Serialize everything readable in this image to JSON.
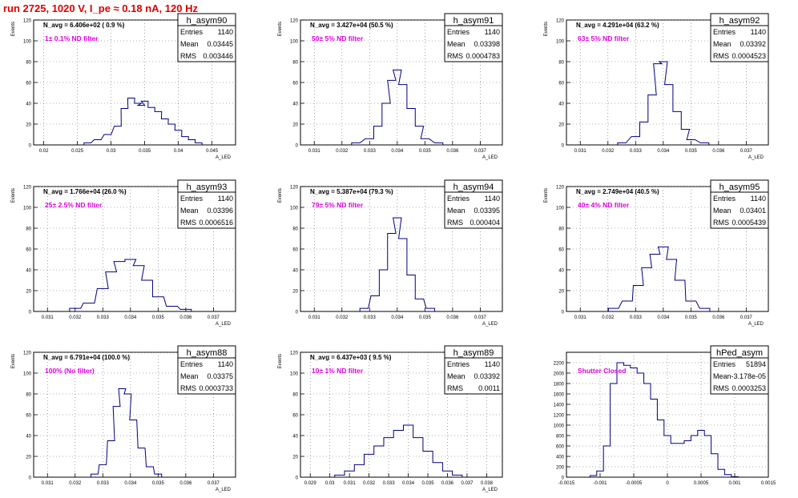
{
  "page": {
    "title": "run 2725,  1020 V, I_pe ≈ 0.18 nA, 120 Hz",
    "title_color": "#e00000"
  },
  "colors": {
    "histogram": "#000080",
    "annotation": "#e000e0",
    "axis": "#000000"
  },
  "chart_data": [
    {
      "type": "bar",
      "name": "h_asym90",
      "avg_label": "N_avg = 6.406e+02 ( 0.9 %)",
      "filter_label": "1± 0.1% ND filter",
      "stats": {
        "Entries": "1140",
        "Mean": "0.03445",
        "RMS": "0.003446"
      },
      "xlabel": "A_LED",
      "ylabel": "Events",
      "xlim": [
        0.0185,
        0.0485
      ],
      "ylim": [
        0,
        120
      ],
      "xticks": [
        0.02,
        0.025,
        0.03,
        0.035,
        0.04,
        0.045
      ],
      "xtick_labels": [
        "0.02",
        "0.025",
        "0.03",
        "0.035",
        "0.04",
        "0.045"
      ],
      "yticks": [
        0,
        20,
        40,
        60,
        80,
        100,
        120
      ],
      "ytick_labels": [
        "0",
        "20",
        "40",
        "60",
        "80",
        "100",
        "120"
      ],
      "x": [
        0.0265,
        0.028,
        0.0295,
        0.031,
        0.032,
        0.033,
        0.034,
        0.0345,
        0.035,
        0.036,
        0.037,
        0.038,
        0.039,
        0.04,
        0.041,
        0.042,
        0.043
      ],
      "values": [
        2,
        5,
        10,
        18,
        35,
        45,
        40,
        38,
        42,
        36,
        32,
        25,
        20,
        14,
        8,
        5,
        2
      ]
    },
    {
      "type": "bar",
      "name": "h_asym91",
      "avg_label": "N_avg = 3.427e+04 (50.5 %)",
      "filter_label": "50± 5% ND filter",
      "stats": {
        "Entries": "1140",
        "Mean": "0.03398",
        "RMS": "0.0004783"
      },
      "xlabel": "A_LED",
      "ylabel": "Events",
      "xlim": [
        0.0305,
        0.0378
      ],
      "ylim": [
        0,
        120
      ],
      "xticks": [
        0.031,
        0.032,
        0.033,
        0.034,
        0.035,
        0.036,
        0.037
      ],
      "xtick_labels": [
        "0.031",
        "0.032",
        "0.033",
        "0.034",
        "0.035",
        "0.036",
        "0.037"
      ],
      "yticks": [
        0,
        20,
        40,
        60,
        80,
        100,
        120
      ],
      "ytick_labels": [
        "0",
        "20",
        "40",
        "60",
        "80",
        "100",
        "120"
      ],
      "x": [
        0.0325,
        0.033,
        0.0333,
        0.0336,
        0.0338,
        0.034,
        0.0342,
        0.0345,
        0.0348,
        0.035,
        0.0355
      ],
      "values": [
        2,
        6,
        18,
        40,
        62,
        72,
        58,
        35,
        18,
        6,
        2
      ]
    },
    {
      "type": "bar",
      "name": "h_asym92",
      "avg_label": "N_avg = 4.291e+04 (63.2 %)",
      "filter_label": "63± 5% ND filter",
      "stats": {
        "Entries": "1140",
        "Mean": "0.03392",
        "RMS": "0.0004523"
      },
      "xlabel": "A_LED",
      "ylabel": "Events",
      "xlim": [
        0.0305,
        0.0378
      ],
      "ylim": [
        0,
        120
      ],
      "xticks": [
        0.031,
        0.032,
        0.033,
        0.034,
        0.035,
        0.036,
        0.037
      ],
      "xtick_labels": [
        "0.031",
        "0.032",
        "0.033",
        "0.034",
        "0.035",
        "0.036",
        "0.037"
      ],
      "yticks": [
        0,
        20,
        40,
        60,
        80,
        100,
        120
      ],
      "ytick_labels": [
        "0",
        "20",
        "40",
        "60",
        "80",
        "100",
        "120"
      ],
      "x": [
        0.0325,
        0.033,
        0.0333,
        0.0336,
        0.0338,
        0.034,
        0.0342,
        0.0345,
        0.0348,
        0.035,
        0.0355
      ],
      "values": [
        2,
        8,
        22,
        48,
        78,
        80,
        58,
        32,
        15,
        5,
        2
      ]
    },
    {
      "type": "bar",
      "name": "h_asym93",
      "avg_label": "N_avg = 1.766e+04 (26.0 %)",
      "filter_label": "25± 2.5% ND filter",
      "stats": {
        "Entries": "1140",
        "Mean": "0.03396",
        "RMS": "0.0006516"
      },
      "xlabel": "A_LED",
      "ylabel": "Events",
      "xlim": [
        0.0305,
        0.0378
      ],
      "ylim": [
        0,
        120
      ],
      "xticks": [
        0.031,
        0.032,
        0.033,
        0.034,
        0.035,
        0.036,
        0.037
      ],
      "xtick_labels": [
        "0.031",
        "0.032",
        "0.033",
        "0.034",
        "0.035",
        "0.036",
        "0.037"
      ],
      "yticks": [
        0,
        20,
        40,
        60,
        80,
        100,
        120
      ],
      "ytick_labels": [
        "0",
        "20",
        "40",
        "60",
        "80",
        "100",
        "120"
      ],
      "x": [
        0.032,
        0.0325,
        0.033,
        0.0333,
        0.0336,
        0.034,
        0.0343,
        0.0346,
        0.035,
        0.0355,
        0.036
      ],
      "values": [
        3,
        8,
        22,
        38,
        48,
        50,
        44,
        30,
        14,
        5,
        2
      ]
    },
    {
      "type": "bar",
      "name": "h_asym94",
      "avg_label": "N_avg = 5.387e+04 (79.3 %)",
      "filter_label": "79± 5% ND filter",
      "stats": {
        "Entries": "1140",
        "Mean": "0.03395",
        "RMS": "0.000404"
      },
      "xlabel": "A_LED",
      "ylabel": "Events",
      "xlim": [
        0.0305,
        0.0378
      ],
      "ylim": [
        0,
        120
      ],
      "xticks": [
        0.031,
        0.032,
        0.033,
        0.034,
        0.035,
        0.036,
        0.037
      ],
      "xtick_labels": [
        "0.031",
        "0.032",
        "0.033",
        "0.034",
        "0.035",
        "0.036",
        "0.037"
      ],
      "yticks": [
        0,
        20,
        40,
        60,
        80,
        100,
        120
      ],
      "ytick_labels": [
        "0",
        "20",
        "40",
        "60",
        "80",
        "100",
        "120"
      ],
      "x": [
        0.0328,
        0.0332,
        0.0335,
        0.0338,
        0.034,
        0.0342,
        0.0345,
        0.0348,
        0.0352
      ],
      "values": [
        3,
        15,
        40,
        75,
        90,
        70,
        35,
        12,
        3
      ]
    },
    {
      "type": "bar",
      "name": "h_asym95",
      "avg_label": "N_avg = 2.749e+04 (40.5 %)",
      "filter_label": "40± 4% ND filter",
      "stats": {
        "Entries": "1140",
        "Mean": "0.03401",
        "RMS": "0.0005439"
      },
      "xlabel": "A_LED",
      "ylabel": "Events",
      "xlim": [
        0.0305,
        0.0378
      ],
      "ylim": [
        0,
        120
      ],
      "xticks": [
        0.031,
        0.032,
        0.033,
        0.034,
        0.035,
        0.036,
        0.037
      ],
      "xtick_labels": [
        "0.031",
        "0.032",
        "0.033",
        "0.034",
        "0.035",
        "0.036",
        "0.037"
      ],
      "yticks": [
        0,
        20,
        40,
        60,
        80,
        100,
        120
      ],
      "ytick_labels": [
        "0",
        "20",
        "40",
        "60",
        "80",
        "100",
        "120"
      ],
      "x": [
        0.0322,
        0.0327,
        0.0331,
        0.0334,
        0.0337,
        0.034,
        0.0343,
        0.0346,
        0.035,
        0.0355
      ],
      "values": [
        3,
        10,
        25,
        42,
        55,
        62,
        50,
        30,
        10,
        3
      ]
    },
    {
      "type": "bar",
      "name": "h_asym88",
      "avg_label": "N_avg = 6.791e+04 (100.0 %)",
      "filter_label": "100% (No filter)",
      "stats": {
        "Entries": "1140",
        "Mean": "0.03375",
        "RMS": "0.0003733"
      },
      "xlabel": "A_LED",
      "ylabel": "Events",
      "xlim": [
        0.0305,
        0.0378
      ],
      "ylim": [
        0,
        120
      ],
      "xticks": [
        0.031,
        0.032,
        0.033,
        0.034,
        0.035,
        0.036,
        0.037
      ],
      "xtick_labels": [
        "0.031",
        "0.032",
        "0.033",
        "0.034",
        "0.035",
        "0.036",
        "0.037"
      ],
      "yticks": [
        0,
        20,
        40,
        60,
        80,
        100,
        120
      ],
      "ytick_labels": [
        "0",
        "20",
        "40",
        "60",
        "80",
        "100",
        "120"
      ],
      "x": [
        0.0327,
        0.033,
        0.0333,
        0.0335,
        0.0337,
        0.0339,
        0.0341,
        0.0344,
        0.0347,
        0.035
      ],
      "values": [
        3,
        12,
        35,
        68,
        85,
        80,
        55,
        28,
        10,
        3
      ]
    },
    {
      "type": "bar",
      "name": "h_asym89",
      "avg_label": "N_avg = 6.437e+03 ( 9.5 %)",
      "filter_label": "10± 1% ND filter",
      "stats": {
        "Entries": "1140",
        "Mean": "0.03392",
        "RMS": "0.0011"
      },
      "xlabel": "A_LED",
      "ylabel": "Events",
      "xlim": [
        0.0285,
        0.0388
      ],
      "ylim": [
        0,
        120
      ],
      "xticks": [
        0.029,
        0.03,
        0.031,
        0.032,
        0.033,
        0.034,
        0.035,
        0.036,
        0.037,
        0.038
      ],
      "xtick_labels": [
        "0.029",
        "0.03",
        "0.031",
        "0.032",
        "0.033",
        "0.034",
        "0.035",
        "0.036",
        "0.037",
        "0.038"
      ],
      "yticks": [
        0,
        20,
        40,
        60,
        80,
        100,
        120
      ],
      "ytick_labels": [
        "0",
        "20",
        "40",
        "60",
        "80",
        "100",
        "120"
      ],
      "x": [
        0.0305,
        0.031,
        0.0315,
        0.032,
        0.0325,
        0.033,
        0.0335,
        0.034,
        0.0345,
        0.035,
        0.0355,
        0.036,
        0.0365
      ],
      "values": [
        2,
        6,
        12,
        22,
        30,
        38,
        45,
        50,
        38,
        25,
        14,
        6,
        2
      ]
    },
    {
      "type": "bar",
      "name": "hPed_asym",
      "avg_label": "",
      "filter_label": "Shutter Closed",
      "stats": {
        "Entries": "51894",
        "Mean": "-3.178e-05",
        "RMS": "0.0003253"
      },
      "xlabel": "",
      "ylabel": "",
      "xlim": [
        -0.0015,
        0.0015
      ],
      "ylim": [
        0,
        2400
      ],
      "xticks": [
        -0.0015,
        -0.001,
        -0.0005,
        0,
        0.0005,
        0.001,
        0.0015
      ],
      "xtick_labels": [
        "-0.0015",
        "-0.001",
        "-0.0005",
        "0",
        "0.0005",
        "0.001",
        "0.0015"
      ],
      "yticks": [
        0,
        200,
        400,
        600,
        800,
        1000,
        1200,
        1400,
        1600,
        1800,
        2000,
        2200
      ],
      "ytick_labels": [
        "0",
        "200",
        "400",
        "600",
        "800",
        "1000",
        "1200",
        "1400",
        "1600",
        "1800",
        "2000",
        "2200"
      ],
      "x": [
        -0.0011,
        -0.001,
        -0.0009,
        -0.0008,
        -0.0007,
        -0.0006,
        -0.0005,
        -0.0004,
        -0.0003,
        -0.0002,
        -0.0001,
        0,
        0.0001,
        0.0002,
        0.0003,
        0.0004,
        0.0005,
        0.0006,
        0.0007,
        0.0008,
        0.0009,
        0.001
      ],
      "values": [
        30,
        120,
        600,
        1800,
        2200,
        2150,
        2100,
        2000,
        1800,
        1500,
        1100,
        800,
        650,
        650,
        700,
        800,
        900,
        800,
        450,
        150,
        50,
        10
      ]
    }
  ]
}
